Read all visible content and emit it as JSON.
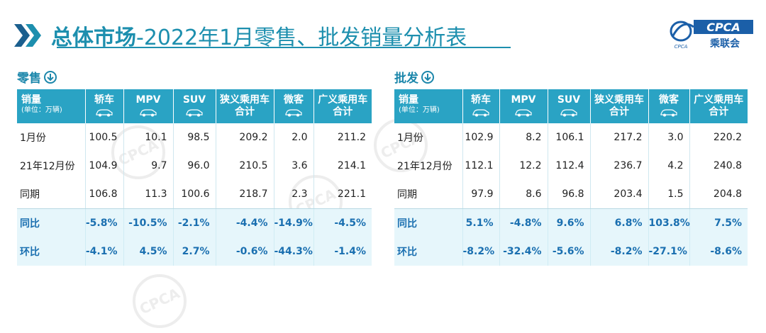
{
  "header": {
    "title_bold": "总体市场",
    "title_rest": "-2022年1月零售、批发销量分析表",
    "logo_text": "CPCA",
    "logo_sub": "乘联会",
    "logo_small": "CPCA"
  },
  "retail": {
    "section_label": "零售",
    "header_unit_label": "销量",
    "header_unit_sub": "(单位：万辆)",
    "columns": [
      "轿车",
      "MPV",
      "SUV",
      "狭义乘用车\n合计",
      "微客",
      "广义乘用车\n合计"
    ],
    "rows": [
      {
        "label": "1月份",
        "values": [
          "100.5",
          "10.1",
          "98.5",
          "209.2",
          "2.0",
          "211.2"
        ]
      },
      {
        "label": "21年12月份",
        "values": [
          "104.9",
          "9.7",
          "96.0",
          "210.5",
          "3.6",
          "214.1"
        ]
      },
      {
        "label": "同期",
        "values": [
          "106.8",
          "11.3",
          "100.6",
          "218.7",
          "2.3",
          "221.1"
        ]
      },
      {
        "label": "同比",
        "values": [
          "-5.8%",
          "-10.5%",
          "-2.1%",
          "-4.4%",
          "-14.9%",
          "-4.5%"
        ]
      },
      {
        "label": "环比",
        "values": [
          "-4.1%",
          "4.5%",
          "2.7%",
          "-0.6%",
          "-44.3%",
          "-1.4%"
        ]
      }
    ]
  },
  "wholesale": {
    "section_label": "批发",
    "header_unit_label": "销量",
    "header_unit_sub": "(单位：万辆)",
    "columns": [
      "轿车",
      "MPV",
      "SUV",
      "狭义乘用车\n合计",
      "微客",
      "广义乘用车\n合计"
    ],
    "rows": [
      {
        "label": "1月份",
        "values": [
          "102.9",
          "8.2",
          "106.1",
          "217.2",
          "3.0",
          "220.2"
        ]
      },
      {
        "label": "21年12月份",
        "values": [
          "112.1",
          "12.2",
          "112.4",
          "236.7",
          "4.2",
          "240.8"
        ]
      },
      {
        "label": "同期",
        "values": [
          "97.9",
          "8.6",
          "96.8",
          "203.4",
          "1.5",
          "204.8"
        ]
      },
      {
        "label": "同比",
        "values": [
          "5.1%",
          "-4.8%",
          "9.6%",
          "6.8%",
          "103.8%",
          "7.5%"
        ]
      },
      {
        "label": "环比",
        "values": [
          "-8.2%",
          "-32.4%",
          "-5.6%",
          "-8.2%",
          "-27.1%",
          "-8.6%"
        ]
      }
    ]
  },
  "colors": {
    "accent": "#1d8fae",
    "header_bg": "#2aa3c4",
    "highlight_bg": "#e6f6fb",
    "highlight_text": "#1a6fb0"
  }
}
